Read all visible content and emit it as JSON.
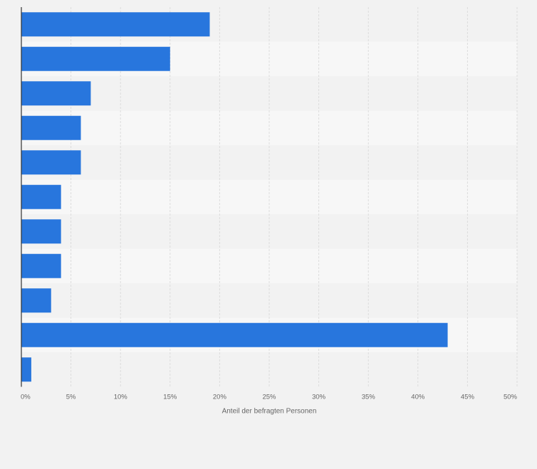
{
  "chart_data": {
    "type": "bar",
    "orientation": "horizontal",
    "categories": [
      "",
      "",
      "",
      "",
      "",
      "",
      "",
      "",
      "",
      "",
      ""
    ],
    "values": [
      19,
      15,
      7,
      6,
      6,
      4,
      4,
      4,
      3,
      43,
      1
    ],
    "xlabel": "Anteil der befragten Personen",
    "xlim": [
      0,
      50
    ],
    "xticks": [
      0,
      5,
      10,
      15,
      20,
      25,
      30,
      35,
      40,
      45,
      50
    ],
    "xtick_labels": [
      "0%",
      "5%",
      "10%",
      "15%",
      "20%",
      "25%",
      "30%",
      "35%",
      "40%",
      "45%",
      "50%"
    ],
    "grid": true,
    "colors": {
      "bar": "#2876dd",
      "band_light": "#f7f7f7",
      "band_dark": "#f2f2f2",
      "grid": "#dcdcdc",
      "axis": "#333333",
      "text": "#666666"
    }
  }
}
